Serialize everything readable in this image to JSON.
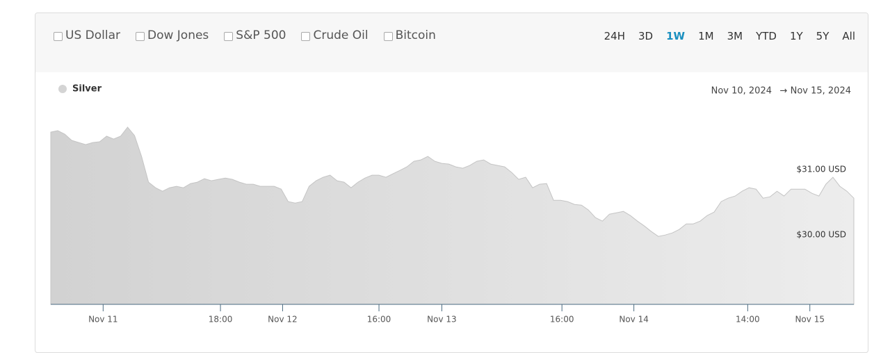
{
  "controls": {
    "compare": [
      "US Dollar",
      "Dow Jones",
      "S&P 500",
      "Crude Oil",
      "Bitcoin"
    ],
    "ranges": [
      "24H",
      "3D",
      "1W",
      "1M",
      "3M",
      "YTD",
      "1Y",
      "5Y",
      "All"
    ],
    "active_range": "1W"
  },
  "chart_data": {
    "type": "area",
    "date_from": "Nov 10, 2024",
    "date_arrow": "→",
    "date_to": "Nov 15, 2024",
    "series": [
      {
        "name": "Silver",
        "color": "#d4d4d4",
        "values": [
          31.574,
          31.596,
          31.543,
          31.447,
          31.415,
          31.383,
          31.415,
          31.426,
          31.511,
          31.468,
          31.511,
          31.649,
          31.521,
          31.202,
          30.809,
          30.723,
          30.67,
          30.723,
          30.745,
          30.723,
          30.787,
          30.809,
          30.862,
          30.83,
          30.851,
          30.872,
          30.851,
          30.809,
          30.777,
          30.777,
          30.745,
          30.745,
          30.745,
          30.702,
          30.511,
          30.489,
          30.511,
          30.745,
          30.83,
          30.883,
          30.915,
          30.83,
          30.809,
          30.723,
          30.809,
          30.872,
          30.915,
          30.915,
          30.883,
          30.936,
          30.989,
          31.043,
          31.128,
          31.149,
          31.202,
          31.128,
          31.096,
          31.085,
          31.043,
          31.021,
          31.064,
          31.128,
          31.149,
          31.085,
          31.064,
          31.043,
          30.957,
          30.851,
          30.883,
          30.723,
          30.777,
          30.787,
          30.532,
          30.532,
          30.511,
          30.468,
          30.457,
          30.383,
          30.266,
          30.213,
          30.319,
          30.34,
          30.362,
          30.298,
          30.213,
          30.138,
          30.053,
          29.979,
          30.0,
          30.032,
          30.085,
          30.17,
          30.17,
          30.213,
          30.298,
          30.351,
          30.511,
          30.564,
          30.596,
          30.67,
          30.723,
          30.702,
          30.564,
          30.585,
          30.67,
          30.596,
          30.702,
          30.702,
          30.702,
          30.638,
          30.596,
          30.777,
          30.883,
          30.745,
          30.67,
          30.564
        ]
      }
    ],
    "xlim": [
      0,
      115
    ],
    "xticks": [
      {
        "value": 7.5,
        "label": "Nov 11"
      },
      {
        "value": 24.3,
        "label": "18:00"
      },
      {
        "value": 33.2,
        "label": "Nov 12"
      },
      {
        "value": 47,
        "label": "16:00"
      },
      {
        "value": 56,
        "label": "Nov 13"
      },
      {
        "value": 73.2,
        "label": "16:00"
      },
      {
        "value": 83.5,
        "label": "Nov 14"
      },
      {
        "value": 99.8,
        "label": "14:00"
      },
      {
        "value": 108.7,
        "label": "Nov 15"
      }
    ],
    "ylim": [
      28.94,
      32.0
    ],
    "yticks": [
      {
        "value": 30,
        "label": "$30.00 USD"
      },
      {
        "value": 31,
        "label": "$31.00 USD"
      }
    ],
    "grid": false,
    "legend": "top-left"
  }
}
